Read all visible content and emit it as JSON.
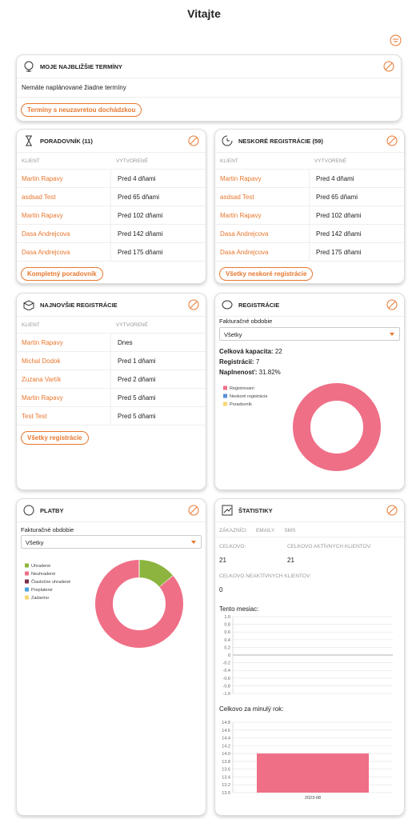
{
  "header": {
    "title": "Vitajte"
  },
  "upcoming": {
    "title": "MOJE NAJBLIŽŠIE TERMÍNY",
    "message": "Nemáte naplánované žiadne termíny",
    "button": "Termíny s neuzavretou dochádzkou"
  },
  "queue": {
    "title": "PORADOVNÍK (11)",
    "columns": [
      "KLIENT",
      "VYTVORENÉ"
    ],
    "rows": [
      [
        "Martin Rapavy",
        "Pred 4 dňami"
      ],
      [
        "asdsad Test",
        "Pred 65 dňami"
      ],
      [
        "Martin Rapavy",
        "Pred 102 dňami"
      ],
      [
        "Dasa Andrejcova",
        "Pred 142 dňami"
      ],
      [
        "Dasa Andrejcova",
        "Pred 175 dňami"
      ]
    ],
    "button": "Kompletný poradovník"
  },
  "late": {
    "title": "NESKORÉ REGISTRÁCIE (59)",
    "columns": [
      "KLIENT",
      "VYTVORENÉ"
    ],
    "rows": [
      [
        "Martin Rapavy",
        "Pred 4 dňami"
      ],
      [
        "asdsad Test",
        "Pred 65 dňami"
      ],
      [
        "Martin Rapavy",
        "Pred 102 dňami"
      ],
      [
        "Dasa Andrejcova",
        "Pred 142 dňami"
      ],
      [
        "Dasa Andrejcova",
        "Pred 175 dňami"
      ]
    ],
    "button": "Všetky neskoré registrácie"
  },
  "newest": {
    "title": "NAJNOVŠIE REGISTRÁCIE",
    "columns": [
      "KLIENT",
      "VYTVORENÉ"
    ],
    "rows": [
      [
        "Martin Rapavy",
        "Dnes"
      ],
      [
        "Michal Dodok",
        "Pred 1 dňami"
      ],
      [
        "Zuzana Vartík",
        "Pred 2 dňami"
      ],
      [
        "Martin Rapavy",
        "Pred 5 dňami"
      ],
      [
        "Test Test",
        "Pred 5 dňami"
      ]
    ],
    "button": "Všetky registrácie"
  },
  "registrations": {
    "title": "REGISTRÁCIE",
    "period_label": "Fakturačné obdobie",
    "period": "Všetky",
    "stats": [
      {
        "label": "Celková kapacita:",
        "value": "22"
      },
      {
        "label": "Registrácií:",
        "value": "7"
      },
      {
        "label": "Naplnenosť:",
        "value": "31.82%"
      }
    ],
    "chart": {
      "type": "pie",
      "categories": [
        "Registrovaní",
        "Neskoré registrácie",
        "Poradovník"
      ],
      "values": [
        7,
        0,
        0
      ],
      "colors": [
        "#ef6f87",
        "#5b8fd6",
        "#f7d774"
      ]
    }
  },
  "payments": {
    "title": "PLATBY",
    "period_label": "Fakturačné obdobie",
    "period": "Všetky",
    "chart": {
      "type": "pie",
      "categories": [
        "Uhradené",
        "Neuhradené",
        "Čiastočne uhradené",
        "Preplatené",
        "Zadarmo"
      ],
      "values": [
        14,
        86,
        0,
        0,
        0
      ],
      "colors": [
        "#8db43e",
        "#ef6f87",
        "#7a2e4a",
        "#4aa3df",
        "#f7d774"
      ]
    }
  },
  "statistics": {
    "title": "ŠTATISTIKY",
    "tabs": [
      "ZÁKAZNÍCI",
      "EMAILY",
      "SMS"
    ],
    "stats": [
      {
        "label": "CELKOVO:",
        "value": "21"
      },
      {
        "label": "CELKOVO AKTÍVNYCH KLIENTOV:",
        "value": "21"
      },
      {
        "label": "CELKOVO NEAKTÍVNYCH KLIENTOV:",
        "value": "0"
      }
    ],
    "month_chart": {
      "type": "line",
      "title": "Tento mesiac:",
      "ylim": [
        -1,
        1
      ],
      "yticks": [
        {
          "value": 1,
          "label": "1.0"
        },
        {
          "value": 0.8,
          "label": "0.8"
        },
        {
          "value": 0.6,
          "label": "0.6"
        },
        {
          "value": 0.4,
          "label": "0.4"
        },
        {
          "value": 0.2,
          "label": "0.2"
        },
        0,
        {
          "value": -0.2,
          "label": "-0.2"
        },
        {
          "value": -0.4,
          "label": "-0.4"
        },
        {
          "value": -0.6,
          "label": "-0.6"
        },
        {
          "value": -0.8,
          "label": "-0.8"
        },
        {
          "value": -1,
          "label": "-1.0"
        }
      ],
      "grid": true
    },
    "year_chart": {
      "type": "bar",
      "title": "Celkovo za minulý rok:",
      "categories": [
        "2023-08"
      ],
      "values": [
        14
      ],
      "color": "#ef6f87",
      "ylim": [
        13,
        14.8
      ],
      "yticks": [
        {
          "value": 14.8,
          "label": "14.8"
        },
        {
          "value": 14.6,
          "label": "14.6"
        },
        {
          "value": 14.4,
          "label": "14.4"
        },
        {
          "value": 14.2,
          "label": "14.2"
        },
        {
          "value": 14,
          "label": "14.0"
        },
        {
          "value": 13.8,
          "label": "13.8"
        },
        {
          "value": 13.6,
          "label": "13.6"
        },
        {
          "value": 13.4,
          "label": "13.4"
        },
        {
          "value": 13.2,
          "label": "13.2"
        },
        {
          "value": 13,
          "label": "13.0"
        }
      ],
      "grid": true
    }
  }
}
